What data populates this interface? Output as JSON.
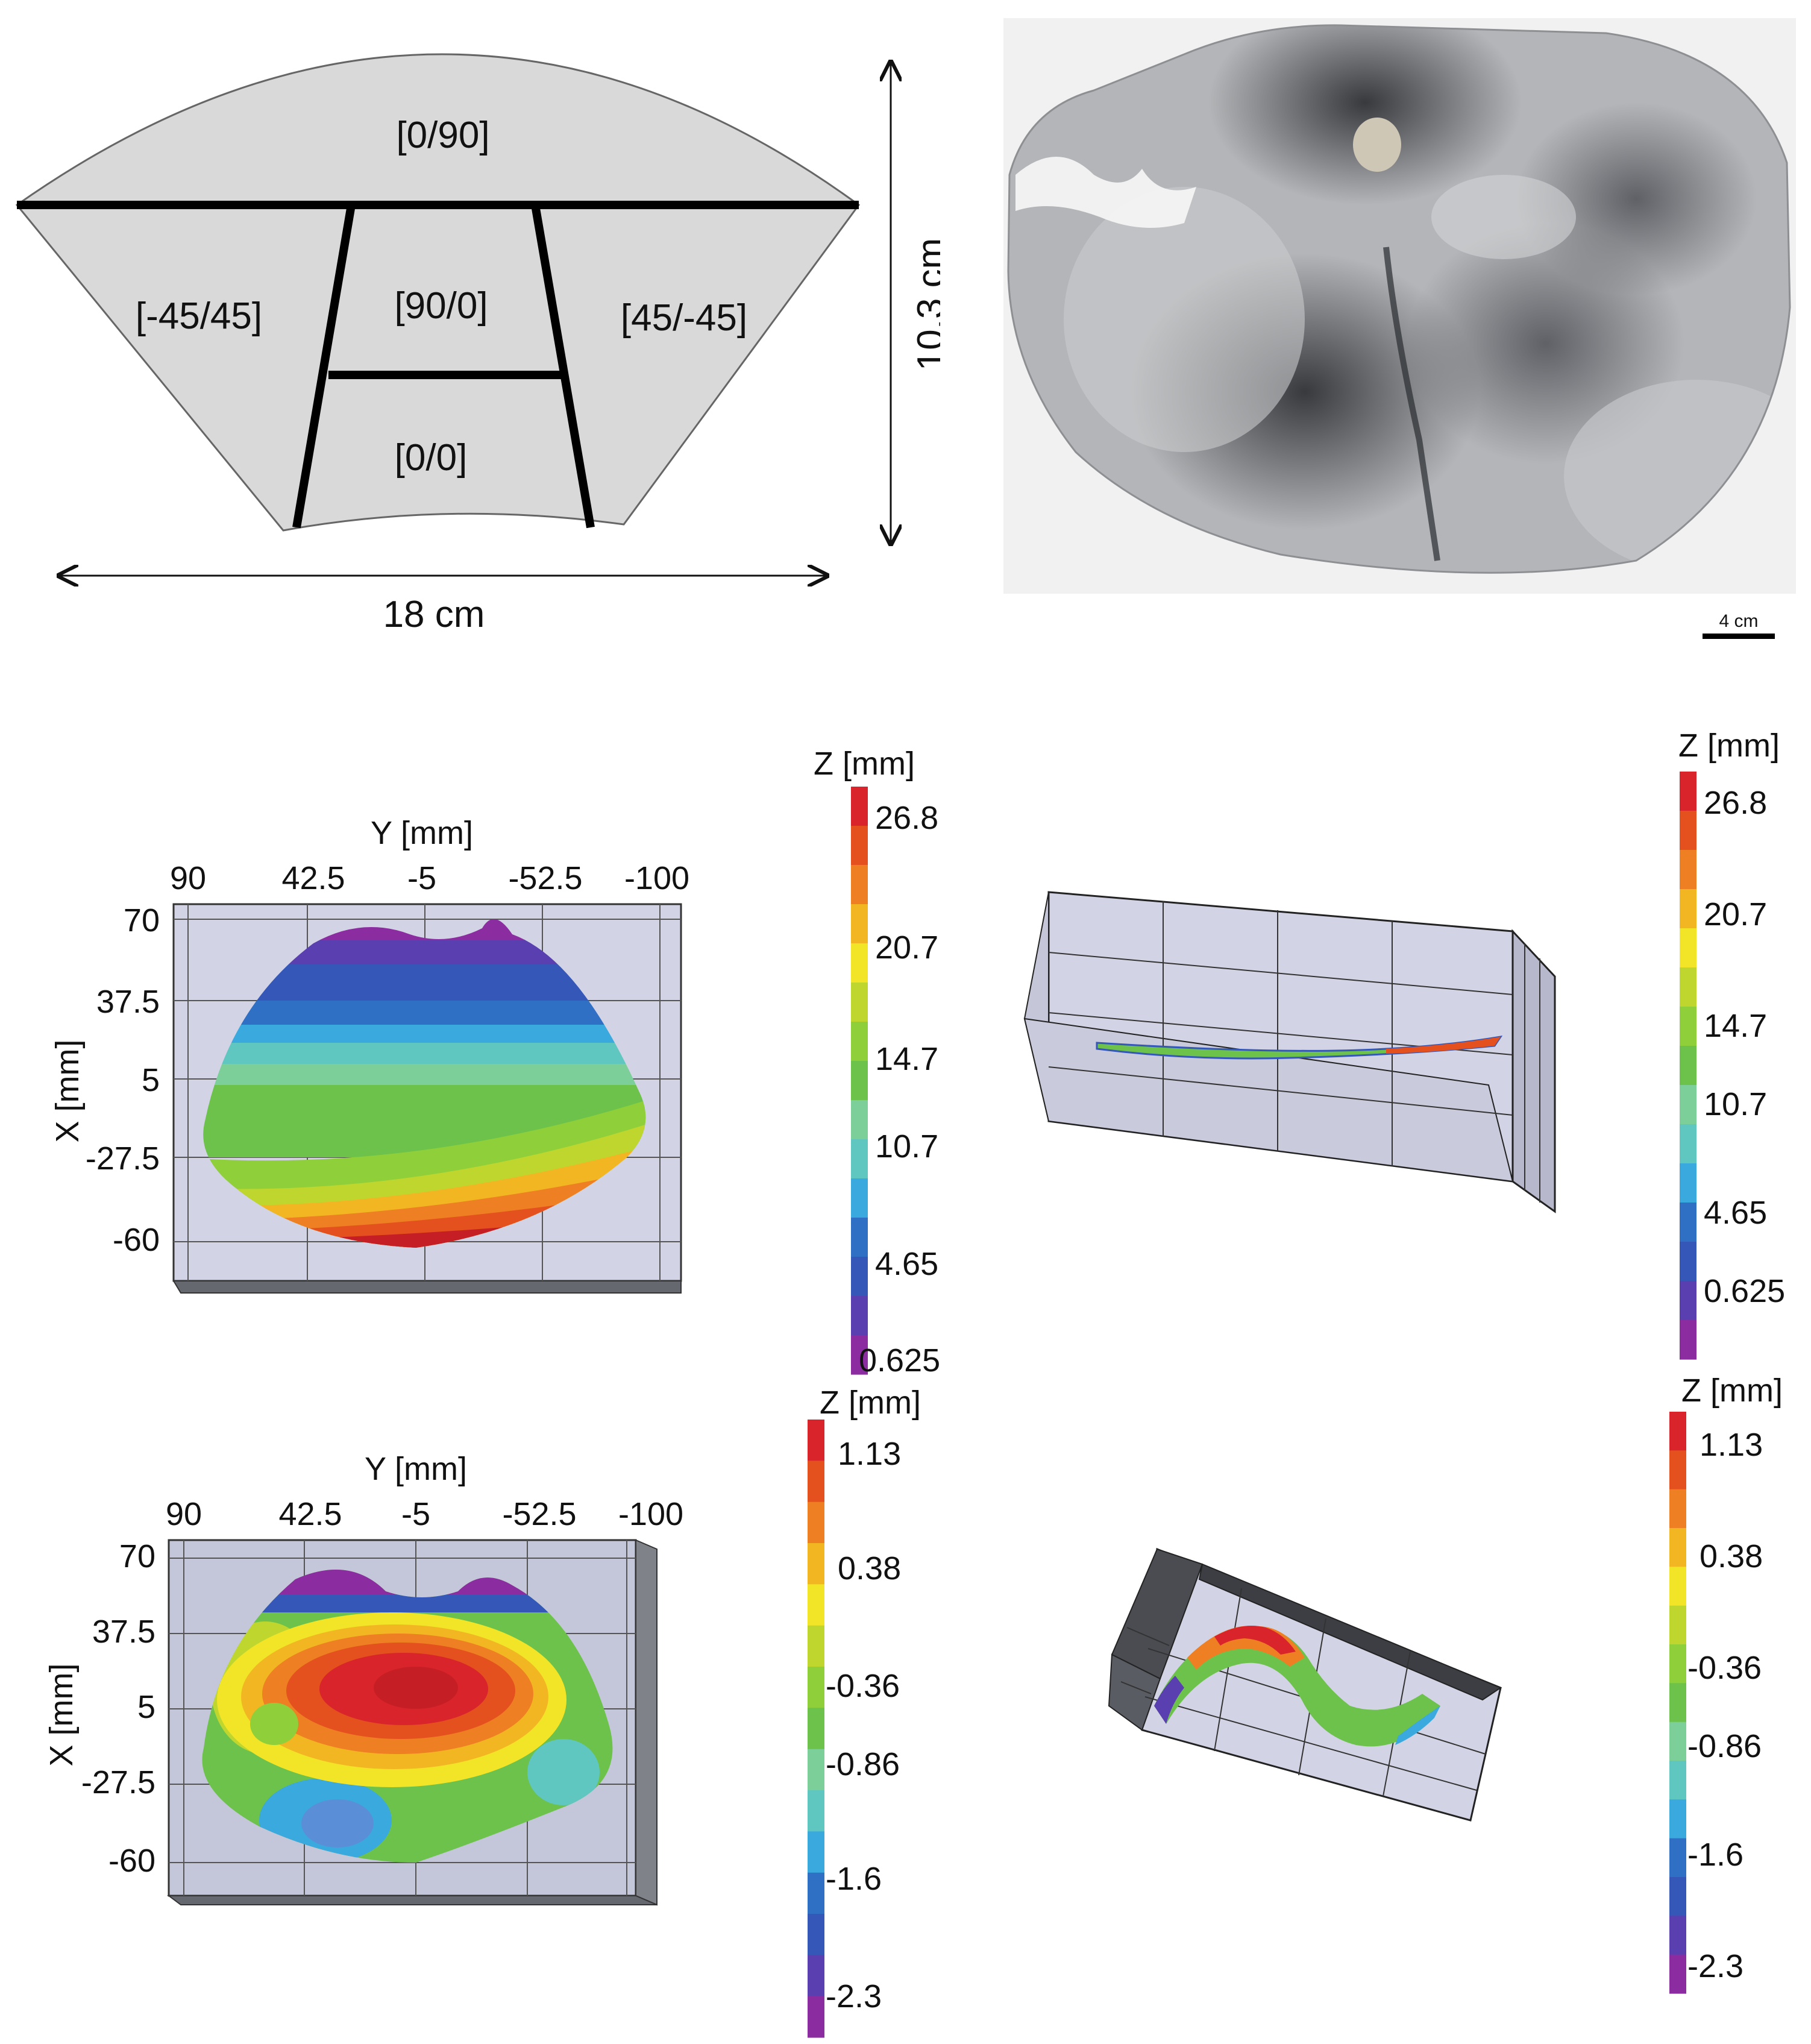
{
  "schematic": {
    "regions": [
      {
        "label": "[0/90]"
      },
      {
        "label": "[-45/45]"
      },
      {
        "label": "[90/0]"
      },
      {
        "label": "[45/-45]"
      },
      {
        "label": "[0/0]"
      }
    ],
    "height_label": "10.3 cm",
    "width_label": "18 cm"
  },
  "photo": {
    "scale_label": "4 cm"
  },
  "plots": {
    "top_left": {
      "y_axis_title": "Y [mm]",
      "y_ticks": [
        "90",
        "42.5",
        "-5",
        "-52.5",
        "-100"
      ],
      "x_axis_title": "X [mm]",
      "x_ticks": [
        "70",
        "37.5",
        "5",
        "-27.5",
        "-60"
      ]
    },
    "bottom_left": {
      "y_axis_title": "Y [mm]",
      "y_ticks": [
        "90",
        "42.5",
        "-5",
        "-52.5",
        "-100"
      ],
      "x_axis_title": "X [mm]",
      "x_ticks": [
        "70",
        "37.5",
        "5",
        "-27.5",
        "-60"
      ]
    }
  },
  "colorbars": {
    "top_left": {
      "title": "Z [mm]",
      "ticks": [
        "26.8",
        "20.7",
        "14.7",
        "10.7",
        "4.65",
        "0.625"
      ]
    },
    "top_right": {
      "title": "Z [mm]",
      "ticks": [
        "26.8",
        "20.7",
        "14.7",
        "10.7",
        "4.65",
        "0.625"
      ]
    },
    "bottom_left": {
      "title": "Z [mm]",
      "ticks": [
        "1.13",
        "0.38",
        "-0.36",
        "-0.86",
        "-1.6",
        "-2.3"
      ]
    },
    "bottom_right": {
      "title": "Z [mm]",
      "ticks": [
        "1.13",
        "0.38",
        "-0.36",
        "-0.86",
        "-1.6",
        "-2.3"
      ]
    }
  },
  "colors": {
    "colormap": [
      "#8b2da0",
      "#5a3fb0",
      "#3557b8",
      "#2f6fc4",
      "#3aa9de",
      "#5fc6c0",
      "#7ccf99",
      "#6cc24a",
      "#8fcf3a",
      "#bfd62e",
      "#f2e427",
      "#f3b623",
      "#ee7f22",
      "#e4501e",
      "#d8242a"
    ],
    "schematic_fill": "#d9d9d9",
    "box_face": "#cfd0e3"
  }
}
